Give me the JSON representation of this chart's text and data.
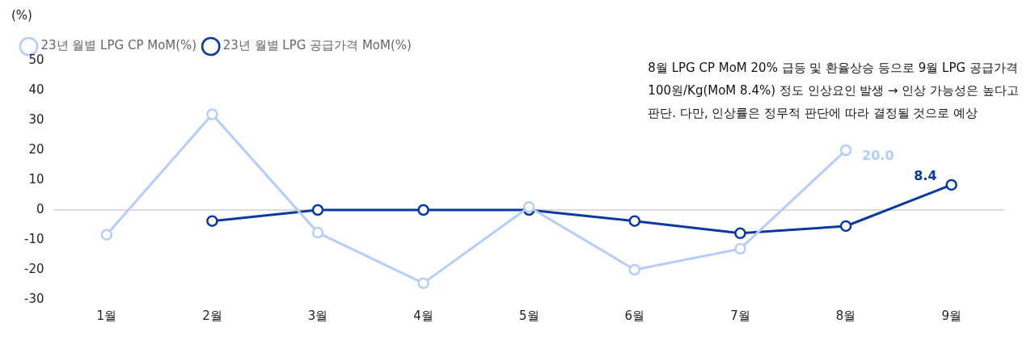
{
  "chart_data": {
    "type": "line",
    "ylabel": "(%)",
    "categories": [
      "1월",
      "2월",
      "3월",
      "4월",
      "5월",
      "6월",
      "7월",
      "8월",
      "9월"
    ],
    "series": [
      {
        "name": "23년 월별 LPG CP MoM(%)",
        "color": "#b4cdfa",
        "values": [
          -8.3,
          32,
          -7.6,
          -24.5,
          1,
          -20,
          -13,
          20.0,
          null
        ],
        "value_labels": [
          null,
          null,
          null,
          null,
          null,
          null,
          null,
          "20.0",
          null
        ]
      },
      {
        "name": "23년 월별 LPG 공급가격 MoM(%)",
        "color": "#0a3aa0",
        "values": [
          null,
          -3.7,
          0,
          0,
          0,
          -3.7,
          -7.8,
          -5.4,
          8.4
        ],
        "value_labels": [
          null,
          null,
          null,
          null,
          null,
          null,
          null,
          null,
          "8.4"
        ]
      }
    ],
    "ylim": [
      -30,
      50
    ],
    "yticks": [
      -30,
      -20,
      -10,
      0,
      10,
      20,
      30,
      40,
      50
    ],
    "grid": false,
    "legend": "top left",
    "marker": "circle",
    "line_style": "solid",
    "ref_lines": [
      {
        "axis": "y",
        "value": 0,
        "color": "#d0d0d0"
      }
    ],
    "annotations": [
      "8월 LPG CP MoM 20% 급등 및 환율상승 등으로 9월 LPG 공급가격\n100원/Kg(MoM 8.4%) 정도 인상요인 발생 → 인상 가능성은 높다고\n판단. 다만, 인상률은 정무적 판단에 따라 결정될 것으로 예상"
    ]
  }
}
